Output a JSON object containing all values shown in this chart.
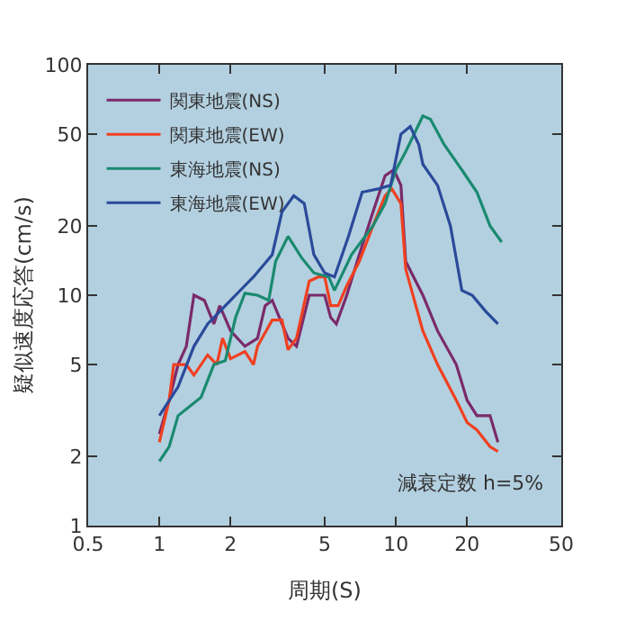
{
  "chart_data": {
    "type": "line",
    "xlabel": "周期(S)",
    "ylabel": "疑似速度応答(cm/s)",
    "log": "xy",
    "grid": false,
    "legend": "top left",
    "xlim": [
      0.5,
      50
    ],
    "xticks": [
      0.5,
      1,
      2,
      5,
      10,
      20,
      50
    ],
    "ylim": [
      1,
      100
    ],
    "yticks": [
      1,
      2,
      5,
      10,
      20,
      50,
      100
    ],
    "annotations": [
      "減衰定数 h=5%"
    ],
    "series": [
      {
        "name": "関東地震(NS)",
        "color": "#7a2a6a",
        "x": [
          1.0,
          1.1,
          1.2,
          1.3,
          1.4,
          1.55,
          1.7,
          1.8,
          2.0,
          2.3,
          2.6,
          2.8,
          3.0,
          3.5,
          3.8,
          4.3,
          5.0,
          5.3,
          5.6,
          6.2,
          7,
          8,
          9,
          9.8,
          10.5,
          11,
          13,
          15,
          18,
          20,
          22,
          25,
          27
        ],
        "values": [
          2.5,
          3.5,
          5,
          6,
          10,
          9.5,
          7.5,
          9,
          7,
          6,
          6.5,
          9,
          9.5,
          6.5,
          6,
          10,
          10,
          8,
          7.5,
          10,
          15,
          23,
          33,
          35,
          30,
          14,
          10,
          7,
          5,
          3.5,
          3,
          3,
          2.3
        ]
      },
      {
        "name": "関東地震(EW)",
        "color": "#f04020",
        "x": [
          1.0,
          1.1,
          1.15,
          1.3,
          1.4,
          1.6,
          1.75,
          1.85,
          2.0,
          2.3,
          2.5,
          2.6,
          3.0,
          3.3,
          3.5,
          3.8,
          4.3,
          4.7,
          5.0,
          5.3,
          5.7,
          6.2,
          7,
          8,
          9,
          9.6,
          10.5,
          11,
          13,
          15,
          18,
          20,
          22,
          25,
          27
        ],
        "values": [
          2.3,
          3.5,
          5,
          5,
          4.5,
          5.5,
          5,
          6.5,
          5.3,
          5.7,
          5,
          6,
          7.8,
          7.8,
          5.8,
          6.5,
          11.5,
          12,
          12,
          9,
          9,
          11,
          14,
          20,
          27,
          29,
          25,
          13,
          7,
          5,
          3.5,
          2.8,
          2.6,
          2.2,
          2.1
        ]
      },
      {
        "name": "東海地震(NS)",
        "color": "#1a8a70",
        "x": [
          1.0,
          1.1,
          1.2,
          1.5,
          1.7,
          1.9,
          2.1,
          2.3,
          2.6,
          2.9,
          3.1,
          3.5,
          4.0,
          4.5,
          5.2,
          5.5,
          6.5,
          8,
          9,
          10,
          11,
          13,
          14,
          16,
          19,
          22,
          25,
          28
        ],
        "values": [
          1.9,
          2.2,
          3,
          3.6,
          5,
          5.2,
          8,
          10.2,
          10,
          9.5,
          14,
          18,
          14.5,
          12.5,
          12,
          10.5,
          15,
          20,
          25,
          35,
          42,
          60,
          58,
          45,
          35,
          28,
          20,
          17
        ]
      },
      {
        "name": "東海地震(EW)",
        "color": "#2a4a9a",
        "x": [
          1.0,
          1.2,
          1.4,
          1.6,
          1.8,
          2.1,
          2.5,
          3.0,
          3.3,
          3.7,
          4.1,
          4.5,
          5.0,
          5.5,
          6.3,
          7.2,
          8.5,
          9.5,
          10.5,
          11.5,
          12.5,
          13,
          15,
          17,
          19,
          21,
          24,
          27
        ],
        "values": [
          3,
          4,
          6,
          7.5,
          8.5,
          10,
          12,
          15,
          23,
          27,
          25,
          15,
          12.5,
          12,
          18,
          28,
          29,
          30,
          50,
          54,
          45,
          37,
          30,
          20,
          10.5,
          10,
          8.5,
          7.5
        ]
      }
    ]
  }
}
